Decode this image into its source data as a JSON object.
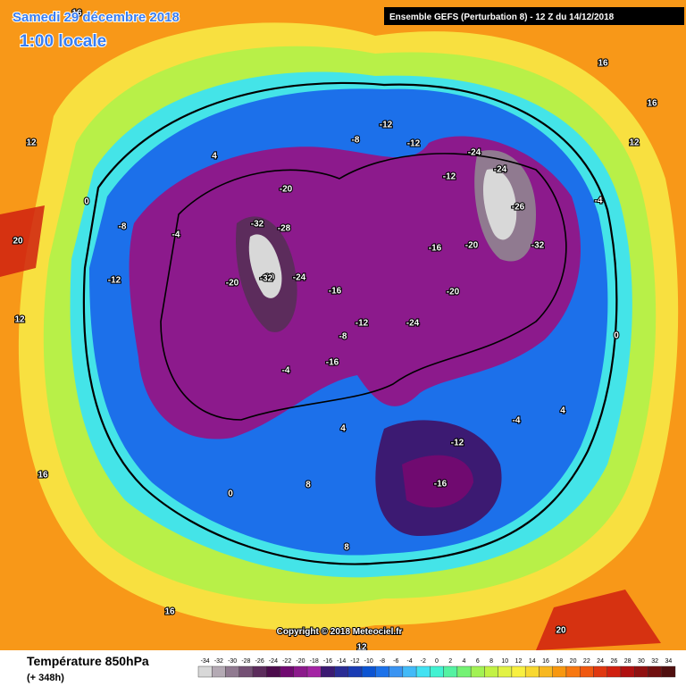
{
  "header": {
    "date": "Samedi 29 décembre 2018",
    "time": "1:00 locale",
    "run": "Ensemble GEFS  (Perturbation 8)  -  12 Z du 14/12/2018",
    "copyright": "Copyright © 2018 Meteociel.fr"
  },
  "legend": {
    "title": "Température 850hPa",
    "lead": "(+ 348h)",
    "scale": [
      -34,
      -32,
      -30,
      -28,
      -26,
      -24,
      -22,
      -20,
      -18,
      -16,
      -14,
      -12,
      -10,
      -8,
      -6,
      -4,
      -2,
      0,
      2,
      4,
      6,
      8,
      10,
      12,
      14,
      16,
      18,
      20,
      22,
      24,
      26,
      28,
      30,
      32,
      34
    ],
    "colors": [
      "#d8d8d8",
      "#b4aab4",
      "#907a90",
      "#745074",
      "#5c2c5c",
      "#4c0c4c",
      "#700a70",
      "#8c1a8c",
      "#a424a4",
      "#3c1a72",
      "#2a2c94",
      "#1a3cb4",
      "#0c54d2",
      "#1c72ea",
      "#3a94f2",
      "#42baf8",
      "#42e2f2",
      "#42f2d2",
      "#54f2a2",
      "#74f274",
      "#a2f254",
      "#c2f244",
      "#e2f244",
      "#f8f040",
      "#f8d830",
      "#f8b820",
      "#f89810",
      "#f87810",
      "#f05810",
      "#e03810",
      "#d02010",
      "#b01010",
      "#901010",
      "#701010",
      "#501010"
    ]
  },
  "map_labels": [
    "-12",
    "-8",
    "-12",
    "-24",
    "-12",
    "-24",
    "-20",
    "-28",
    "-32",
    "-20",
    "-32",
    "-24",
    "-20",
    "-16",
    "-12",
    "-16",
    "-24",
    "-20",
    "-26",
    "-32",
    "-20",
    "-16",
    "-8",
    "-4",
    "-12",
    "-8",
    "-4",
    "-16",
    "-12",
    "-4",
    "0",
    "4",
    "0",
    "8",
    "16",
    "12",
    "16",
    "20",
    "16",
    "12",
    "12",
    "16",
    "20",
    "12",
    "16",
    "4",
    "0",
    "-4",
    "8",
    "4"
  ]
}
